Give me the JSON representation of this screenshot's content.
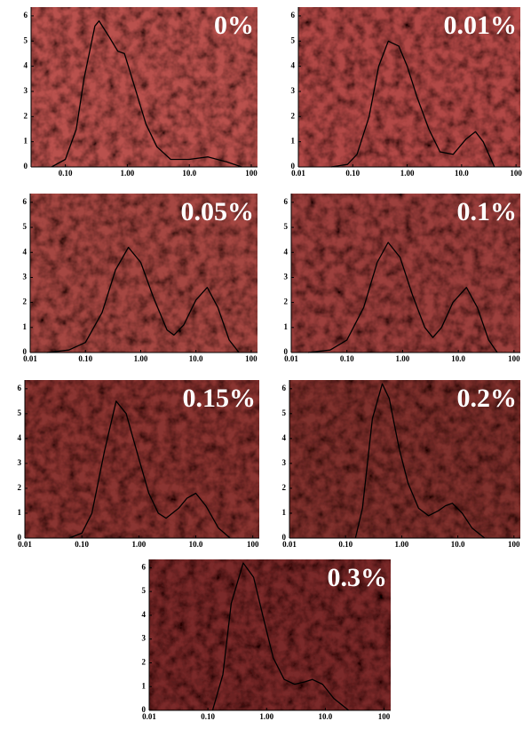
{
  "chart_data": [
    {
      "type": "line",
      "title": "0%",
      "color": "#000000",
      "background_color": "#b9514d",
      "log_x": true,
      "x": [
        0.06,
        0.1,
        0.15,
        0.2,
        0.3,
        0.35,
        0.5,
        0.7,
        0.9,
        1.2,
        2,
        3,
        5,
        10,
        20,
        40,
        70
      ],
      "values": [
        0,
        0.3,
        1.5,
        3.5,
        5.6,
        5.8,
        5.2,
        4.6,
        4.5,
        3.5,
        1.7,
        0.8,
        0.3,
        0.3,
        0.4,
        0.2,
        0
      ],
      "xlim": [
        0.028,
        126
      ],
      "ylim": [
        0,
        6.35
      ],
      "xticks": [
        {
          "value": 0.1,
          "label": "0.10"
        },
        {
          "value": 1,
          "label": "1.00"
        },
        {
          "value": 10,
          "label": "10.0"
        },
        100
      ],
      "yticks": [
        0,
        1,
        2,
        3,
        4,
        5,
        6
      ]
    },
    {
      "type": "line",
      "title": "0.01%",
      "color": "#000000",
      "background_color": "#b24a47",
      "log_x": true,
      "x": [
        0.04,
        0.08,
        0.12,
        0.2,
        0.3,
        0.45,
        0.7,
        1,
        1.5,
        2.5,
        4,
        7,
        12,
        18,
        25,
        40
      ],
      "values": [
        0,
        0.1,
        0.5,
        2,
        4,
        5,
        4.8,
        4,
        2.8,
        1.5,
        0.6,
        0.5,
        1.1,
        1.4,
        1,
        0
      ],
      "xlim": [
        0.01,
        120
      ],
      "ylim": [
        0,
        6.35
      ],
      "xticks": [
        0.01,
        {
          "value": 0.1,
          "label": "0.10"
        },
        {
          "value": 1,
          "label": "1.00"
        },
        {
          "value": 10,
          "label": "10.0"
        },
        100
      ],
      "yticks": [
        0,
        1,
        2,
        3,
        4,
        5,
        6
      ]
    },
    {
      "type": "line",
      "title": "0.05%",
      "color": "#000000",
      "background_color": "#a54643",
      "log_x": true,
      "x": [
        0.02,
        0.05,
        0.1,
        0.2,
        0.35,
        0.6,
        1,
        1.7,
        3,
        4,
        6,
        10,
        16,
        25,
        40,
        60
      ],
      "values": [
        0,
        0.1,
        0.4,
        1.6,
        3.3,
        4.2,
        3.6,
        2.2,
        0.9,
        0.7,
        1.1,
        2.1,
        2.6,
        1.8,
        0.5,
        0
      ],
      "xlim": [
        0.01,
        130
      ],
      "ylim": [
        0,
        6.35
      ],
      "xticks": [
        0.01,
        {
          "value": 0.1,
          "label": "0.10"
        },
        {
          "value": 1,
          "label": "1.00"
        },
        {
          "value": 10,
          "label": "10.0"
        },
        100
      ],
      "yticks": [
        0,
        1,
        2,
        3,
        4,
        5,
        6
      ]
    },
    {
      "type": "line",
      "title": "0.1%",
      "color": "#000000",
      "background_color": "#9c3f3d",
      "log_x": true,
      "x": [
        0.02,
        0.05,
        0.1,
        0.2,
        0.35,
        0.55,
        0.9,
        1.5,
        2.5,
        3.5,
        5,
        8,
        14,
        22,
        35,
        50
      ],
      "values": [
        0,
        0.1,
        0.5,
        1.8,
        3.6,
        4.4,
        3.8,
        2.3,
        1,
        0.6,
        1,
        2,
        2.6,
        1.8,
        0.5,
        0
      ],
      "xlim": [
        0.01,
        130
      ],
      "ylim": [
        0,
        6.35
      ],
      "xticks": [
        0.01,
        {
          "value": 0.1,
          "label": "0.10"
        },
        {
          "value": 1,
          "label": "1.00"
        },
        {
          "value": 10,
          "label": "10.0"
        },
        100
      ],
      "yticks": [
        0,
        1,
        2,
        3,
        4,
        5,
        6
      ]
    },
    {
      "type": "line",
      "title": "0.15%",
      "color": "#000000",
      "background_color": "#8a3433",
      "log_x": true,
      "x": [
        0.06,
        0.1,
        0.15,
        0.25,
        0.4,
        0.6,
        1,
        1.5,
        2.2,
        3,
        5,
        7,
        10,
        15,
        25,
        40
      ],
      "values": [
        0,
        0.2,
        1,
        3.5,
        5.5,
        5,
        3.2,
        1.8,
        1,
        0.8,
        1.2,
        1.6,
        1.8,
        1.3,
        0.4,
        0
      ],
      "xlim": [
        0.01,
        130
      ],
      "ylim": [
        0,
        6.35
      ],
      "xticks": [
        0.01,
        {
          "value": 0.1,
          "label": "0.10"
        },
        {
          "value": 1,
          "label": "1.00"
        },
        {
          "value": 10,
          "label": "10.0"
        },
        100
      ],
      "yticks": [
        0,
        1,
        2,
        3,
        4,
        5,
        6
      ]
    },
    {
      "type": "line",
      "title": "0.2%",
      "color": "#000000",
      "background_color": "#80302f",
      "log_x": true,
      "x": [
        0.15,
        0.2,
        0.3,
        0.45,
        0.6,
        0.9,
        1.3,
        2,
        3,
        4.5,
        6,
        8,
        12,
        18,
        30
      ],
      "values": [
        0,
        1.2,
        4.8,
        6.2,
        5.6,
        3.6,
        2.2,
        1.2,
        0.9,
        1.1,
        1.3,
        1.4,
        1,
        0.4,
        0
      ],
      "xlim": [
        0.01,
        130
      ],
      "ylim": [
        0,
        6.35
      ],
      "xticks": [
        0.01,
        {
          "value": 0.1,
          "label": "0.10"
        },
        {
          "value": 1,
          "label": "1.00"
        },
        {
          "value": 10,
          "label": "10.0"
        },
        100
      ],
      "yticks": [
        0,
        1,
        2,
        3,
        4,
        5,
        6
      ]
    },
    {
      "type": "line",
      "title": "0.3%",
      "color": "#000000",
      "background_color": "#7a2c2b",
      "log_x": true,
      "x": [
        0.12,
        0.18,
        0.25,
        0.4,
        0.6,
        0.9,
        1.3,
        2,
        3,
        4.5,
        6,
        9,
        14,
        25
      ],
      "values": [
        0,
        1.5,
        4.5,
        6.2,
        5.6,
        3.8,
        2.2,
        1.3,
        1.1,
        1.2,
        1.3,
        1.1,
        0.5,
        0
      ],
      "xlim": [
        0.01,
        130
      ],
      "ylim": [
        0,
        6.35
      ],
      "xticks": [
        0.01,
        {
          "value": 0.1,
          "label": "0.10"
        },
        {
          "value": 1,
          "label": "1.00"
        },
        {
          "value": 10,
          "label": "10.0"
        },
        100
      ],
      "yticks": [
        0,
        1,
        2,
        3,
        4,
        5,
        6
      ]
    }
  ]
}
